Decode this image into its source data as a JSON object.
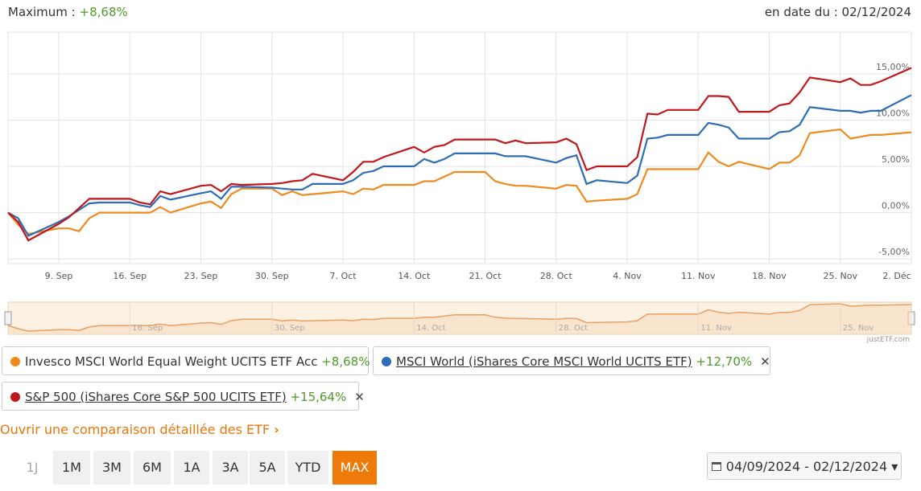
{
  "header": {
    "maximum_label": "Maximum :",
    "maximum_value": "+8,68%",
    "date_label": "en date du : 02/12/2024"
  },
  "chart_data": {
    "type": "line",
    "x": [
      "2024-09-04",
      "2024-09-05",
      "2024-09-06",
      "2024-09-09",
      "2024-09-10",
      "2024-09-11",
      "2024-09-12",
      "2024-09-13",
      "2024-09-16",
      "2024-09-17",
      "2024-09-18",
      "2024-09-19",
      "2024-09-20",
      "2024-09-23",
      "2024-09-24",
      "2024-09-25",
      "2024-09-26",
      "2024-09-27",
      "2024-09-30",
      "2024-10-01",
      "2024-10-02",
      "2024-10-03",
      "2024-10-04",
      "2024-10-07",
      "2024-10-08",
      "2024-10-09",
      "2024-10-10",
      "2024-10-11",
      "2024-10-14",
      "2024-10-15",
      "2024-10-16",
      "2024-10-17",
      "2024-10-18",
      "2024-10-21",
      "2024-10-22",
      "2024-10-23",
      "2024-10-24",
      "2024-10-25",
      "2024-10-28",
      "2024-10-29",
      "2024-10-30",
      "2024-10-31",
      "2024-11-01",
      "2024-11-04",
      "2024-11-05",
      "2024-11-06",
      "2024-11-07",
      "2024-11-08",
      "2024-11-11",
      "2024-11-12",
      "2024-11-13",
      "2024-11-14",
      "2024-11-15",
      "2024-11-18",
      "2024-11-19",
      "2024-11-20",
      "2024-11-21",
      "2024-11-22",
      "2024-11-25",
      "2024-11-26",
      "2024-11-27",
      "2024-11-28",
      "2024-11-29",
      "2024-12-02"
    ],
    "series": [
      {
        "name": "Invesco MSCI World Equal Weight UCITS ETF Acc",
        "return_label": "+8,68%",
        "color": "#ee8a1f",
        "values": [
          0,
          -1.3,
          -2.3,
          -1.7,
          -1.7,
          -2.0,
          -0.6,
          0.0,
          0.0,
          0.0,
          0.0,
          0.6,
          0.0,
          1.0,
          1.2,
          0.5,
          2.0,
          2.6,
          2.6,
          1.9,
          2.3,
          1.9,
          2.0,
          2.3,
          2.0,
          2.6,
          2.5,
          3.0,
          3.0,
          3.4,
          3.4,
          3.9,
          4.4,
          4.4,
          3.4,
          3.1,
          2.9,
          2.9,
          2.6,
          3.0,
          2.9,
          1.2,
          1.3,
          1.5,
          2.0,
          4.7,
          4.7,
          4.7,
          4.7,
          6.5,
          5.5,
          5.0,
          5.5,
          4.7,
          5.4,
          5.4,
          6.2,
          8.6,
          9.0,
          8.0,
          8.2,
          8.4,
          8.4,
          8.68
        ]
      },
      {
        "name": "MSCI World (iShares Core MSCI World UCITS ETF)",
        "return_label": "+12,70%",
        "color": "#2e6db4",
        "values": [
          0,
          -0.6,
          -2.5,
          -1.0,
          -0.4,
          0.3,
          1.0,
          1.1,
          1.1,
          0.8,
          0.6,
          1.8,
          1.4,
          2.1,
          2.3,
          1.5,
          2.8,
          2.8,
          2.7,
          2.6,
          2.5,
          2.5,
          3.1,
          3.1,
          3.5,
          4.3,
          4.5,
          5.0,
          5.0,
          5.8,
          5.4,
          5.8,
          6.4,
          6.4,
          6.4,
          6.1,
          6.1,
          6.1,
          5.4,
          5.9,
          6.2,
          3.1,
          3.5,
          3.2,
          4.0,
          8.0,
          8.1,
          8.4,
          8.4,
          9.7,
          9.5,
          9.2,
          8.0,
          8.0,
          8.7,
          8.8,
          9.5,
          11.4,
          11.0,
          11.0,
          10.8,
          11.0,
          11.0,
          12.7
        ]
      },
      {
        "name": "S&P 500 (iShares Core S&P 500 UCITS ETF)",
        "return_label": "+15,64%",
        "color": "#c0171d",
        "values": [
          0,
          -1,
          -3,
          -1.2,
          -0.5,
          0.5,
          1.5,
          1.5,
          1.5,
          1.1,
          0.9,
          2.3,
          2.0,
          2.9,
          3.0,
          2.3,
          3.1,
          3.0,
          3.1,
          3.2,
          3.4,
          3.5,
          4.2,
          3.5,
          4.4,
          5.5,
          5.5,
          6.0,
          7.1,
          6.5,
          7.1,
          7.3,
          7.9,
          7.9,
          7.9,
          7.5,
          7.8,
          7.5,
          7.6,
          8.0,
          7.4,
          4.6,
          5.0,
          5.0,
          6.0,
          10.7,
          10.6,
          11.1,
          11.1,
          12.6,
          12.6,
          12.5,
          10.9,
          10.9,
          11.6,
          11.8,
          13.0,
          14.6,
          14.1,
          14.5,
          13.8,
          13.8,
          14.2,
          15.64
        ]
      }
    ],
    "xlim": [
      "2024-09-04",
      "2024-12-02"
    ],
    "xticks": [
      {
        "value": "2024-09-09",
        "label": "9. Sep"
      },
      {
        "value": "2024-09-16",
        "label": "16. Sep"
      },
      {
        "value": "2024-09-23",
        "label": "23. Sep"
      },
      {
        "value": "2024-09-30",
        "label": "30. Sep"
      },
      {
        "value": "2024-10-07",
        "label": "7. Oct"
      },
      {
        "value": "2024-10-14",
        "label": "14. Oct"
      },
      {
        "value": "2024-10-21",
        "label": "21. Oct"
      },
      {
        "value": "2024-10-28",
        "label": "28. Oct"
      },
      {
        "value": "2024-11-04",
        "label": "4. Nov"
      },
      {
        "value": "2024-11-11",
        "label": "11. Nov"
      },
      {
        "value": "2024-11-18",
        "label": "18. Nov"
      },
      {
        "value": "2024-11-25",
        "label": "25. Nov"
      },
      {
        "value": "2024-12-02",
        "label": "2. Déc"
      }
    ],
    "ylim": [
      -5.5,
      19.5
    ],
    "yticks": [
      {
        "value": -5,
        "label": "-5,00%"
      },
      {
        "value": 0,
        "label": "0,00%"
      },
      {
        "value": 5,
        "label": "5,00%"
      },
      {
        "value": 10,
        "label": "10,00%"
      },
      {
        "value": 15,
        "label": "15,00%"
      }
    ],
    "grid": true,
    "navigator": {
      "xticks": [
        {
          "value": "2024-09-16",
          "label": "16. Sep"
        },
        {
          "value": "2024-09-30",
          "label": "30. Sep"
        },
        {
          "value": "2024-10-14",
          "label": "14. Oct"
        },
        {
          "value": "2024-10-28",
          "label": "28. Oct"
        },
        {
          "value": "2024-11-11",
          "label": "11. Nov"
        },
        {
          "value": "2024-11-25",
          "label": "25. Nov"
        }
      ]
    },
    "credit": "justETF.com"
  },
  "link": "Ouvrir une comparaison détaillée des ETF",
  "periods": [
    "1J",
    "1M",
    "3M",
    "6M",
    "1A",
    "3A",
    "5A",
    "YTD",
    "MAX"
  ],
  "date_range": "04/09/2024 - 02/12/2024"
}
